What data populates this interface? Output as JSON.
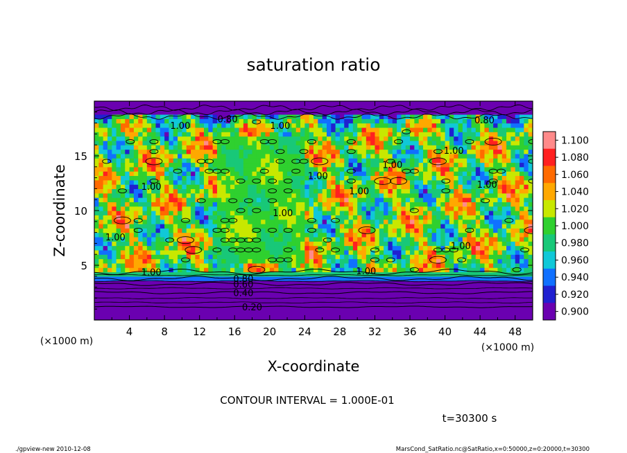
{
  "chart_data": {
    "type": "heatmap",
    "title": "saturation ratio",
    "xlabel": "X-coordinate",
    "ylabel": "Z-coordinate",
    "x_unit": "(×1000 m)",
    "y_unit": "(×1000 m)",
    "xlim": [
      0,
      50
    ],
    "ylim": [
      0,
      20
    ],
    "x_ticks": [
      "4",
      "8",
      "12",
      "16",
      "20",
      "24",
      "28",
      "32",
      "36",
      "40",
      "44",
      "48"
    ],
    "x_tick_values": [
      4,
      8,
      12,
      16,
      20,
      24,
      28,
      32,
      36,
      40,
      44,
      48
    ],
    "y_ticks": [
      "5",
      "10",
      "15"
    ],
    "y_tick_values": [
      5,
      10,
      15
    ],
    "colorbar": {
      "labels": [
        "1.100",
        "1.080",
        "1.060",
        "1.040",
        "1.020",
        "1.000",
        "0.980",
        "0.960",
        "0.940",
        "0.920",
        "0.900"
      ],
      "min": 0.9,
      "max": 1.1,
      "colors": [
        "#ff8a8a",
        "#ff2020",
        "#ff6a00",
        "#ffa800",
        "#c8e800",
        "#2fd02f",
        "#18c878",
        "#10c8d8",
        "#1070ff",
        "#2020d0",
        "#6a00b0"
      ]
    },
    "lower_layer_contours": [
      {
        "label": "0.20",
        "z": 1.2,
        "x": 18.0
      },
      {
        "label": "0.40",
        "z": 2.5,
        "x": 17.0
      },
      {
        "label": "0.60",
        "z": 3.3,
        "x": 17.0
      },
      {
        "label": "0.80",
        "z": 3.8,
        "x": 17.0
      },
      {
        "label": "1.00",
        "z": 4.4,
        "x": 6.5
      }
    ],
    "upper_layer_contours": [
      {
        "label": "0.80",
        "z": 18.4,
        "x": 15.2
      },
      {
        "label": "0.80",
        "z": 18.3,
        "x": 44.5
      }
    ],
    "interior_labels": [
      {
        "label": "1.00",
        "x": 9.8,
        "z": 17.8
      },
      {
        "label": "1.00",
        "x": 21.2,
        "z": 17.8
      },
      {
        "label": "1.00",
        "x": 41.0,
        "z": 15.5
      },
      {
        "label": "1.00",
        "x": 25.5,
        "z": 13.2
      },
      {
        "label": "1.00",
        "x": 34.0,
        "z": 14.2
      },
      {
        "label": "1.00",
        "x": 6.5,
        "z": 12.2
      },
      {
        "label": "1.00",
        "x": 30.2,
        "z": 11.8
      },
      {
        "label": "1.00",
        "x": 44.8,
        "z": 12.4
      },
      {
        "label": "1.00",
        "x": 21.5,
        "z": 9.8
      },
      {
        "label": "1.00",
        "x": 2.4,
        "z": 7.6
      },
      {
        "label": "1.00",
        "x": 41.8,
        "z": 6.8
      },
      {
        "label": "1.00",
        "x": 31.0,
        "z": 4.5
      }
    ]
  },
  "contour_interval": "CONTOUR INTERVAL = 1.000E-01",
  "time_label": "t=30300 s",
  "footer_left": "./gpview-new  2010-12-08",
  "footer_right": "MarsCond_SatRatio.nc@SatRatio,x=0:50000,z=0:20000,t=30300"
}
